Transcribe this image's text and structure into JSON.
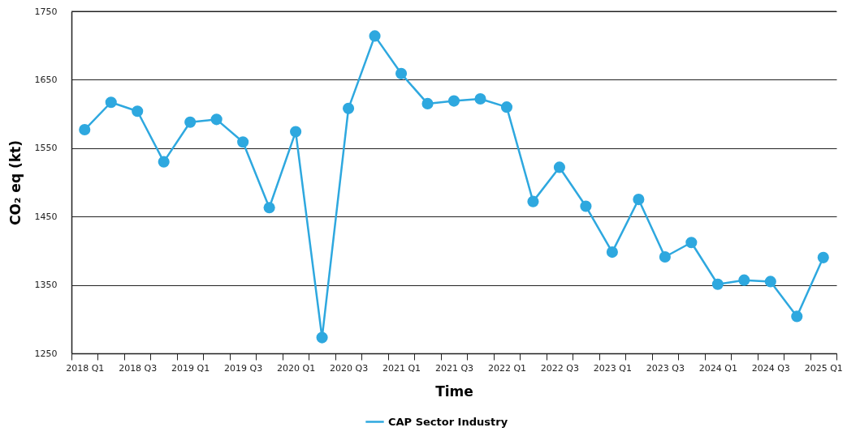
{
  "chart_data": {
    "type": "line",
    "xlabel": "Time",
    "ylabel": "CO₂ eq (kt)",
    "categories": [
      "2018 Q1",
      null,
      "2018 Q3",
      null,
      "2019 Q1",
      null,
      "2019 Q3",
      null,
      "2020 Q1",
      null,
      "2020 Q3",
      null,
      "2021 Q1",
      null,
      "2021 Q3",
      null,
      "2022 Q1",
      null,
      "2022 Q3",
      null,
      "2023 Q1",
      null,
      "2023 Q3",
      null,
      "2024 Q1",
      null,
      "2024 Q3",
      null,
      "2025 Q1"
    ],
    "series": [
      {
        "name": "CAP Sector Industry",
        "color": "#2ea8df",
        "values": [
          1577,
          1617,
          1604,
          1530,
          1588,
          1592,
          1559,
          1463,
          1574,
          1273,
          1608,
          1714,
          1659,
          1615,
          1619,
          1622,
          1610,
          1472,
          1522,
          1465,
          1398,
          1475,
          1391,
          1412,
          1351,
          1357,
          1355,
          1304,
          1390
        ]
      }
    ],
    "ylim": [
      1250,
      1750
    ],
    "yticks": [
      1250,
      1350,
      1450,
      1550,
      1650,
      1750
    ],
    "grid": "y",
    "legend": "bottom",
    "marker": "circle",
    "line_style": "solid"
  }
}
